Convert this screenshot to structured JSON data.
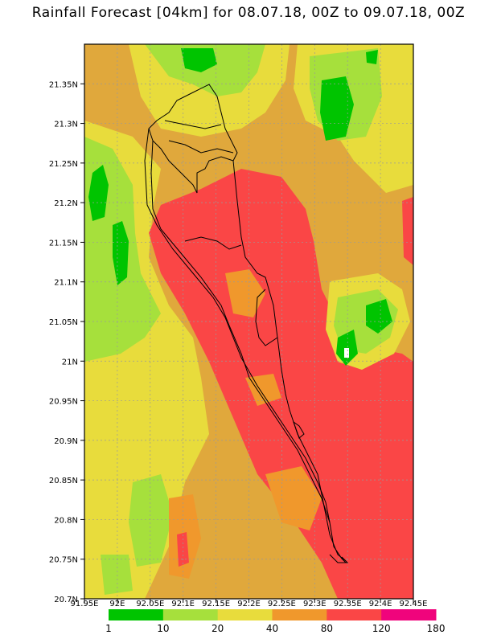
{
  "title": "Rainfall Forecast [04km] for 08.07.18, 00Z to 09.07.18, 00Z",
  "axes": {
    "x_ticks": [
      "91.95E",
      "92E",
      "92.05E",
      "92.1E",
      "92.15E",
      "92.2E",
      "92.25E",
      "92.3E",
      "92.35E",
      "92.4E",
      "92.45E"
    ],
    "y_ticks": [
      "21.35N",
      "21.3N",
      "21.25N",
      "21.2N",
      "21.15N",
      "21.1N",
      "21.05N",
      "21N",
      "20.95N",
      "20.9N",
      "20.85N",
      "20.8N",
      "20.75N",
      "20.7N"
    ],
    "x_range": [
      91.95,
      92.45
    ],
    "y_range": [
      20.7,
      21.4
    ]
  },
  "legend": {
    "labels": [
      "1",
      "10",
      "20",
      "40",
      "80",
      "120",
      "180"
    ],
    "colors": [
      "#00c400",
      "#a6e03c",
      "#e8dc3c",
      "#f0982c",
      "#fa4646",
      "#f0047c"
    ]
  },
  "colors": {
    "lowest": "#00c400",
    "low": "#a6e03c",
    "mid": "#e8dc3c",
    "light_orange": "#e0a83c",
    "orange": "#f0982c",
    "red": "#fa4646",
    "magenta": "#f0047c"
  }
}
